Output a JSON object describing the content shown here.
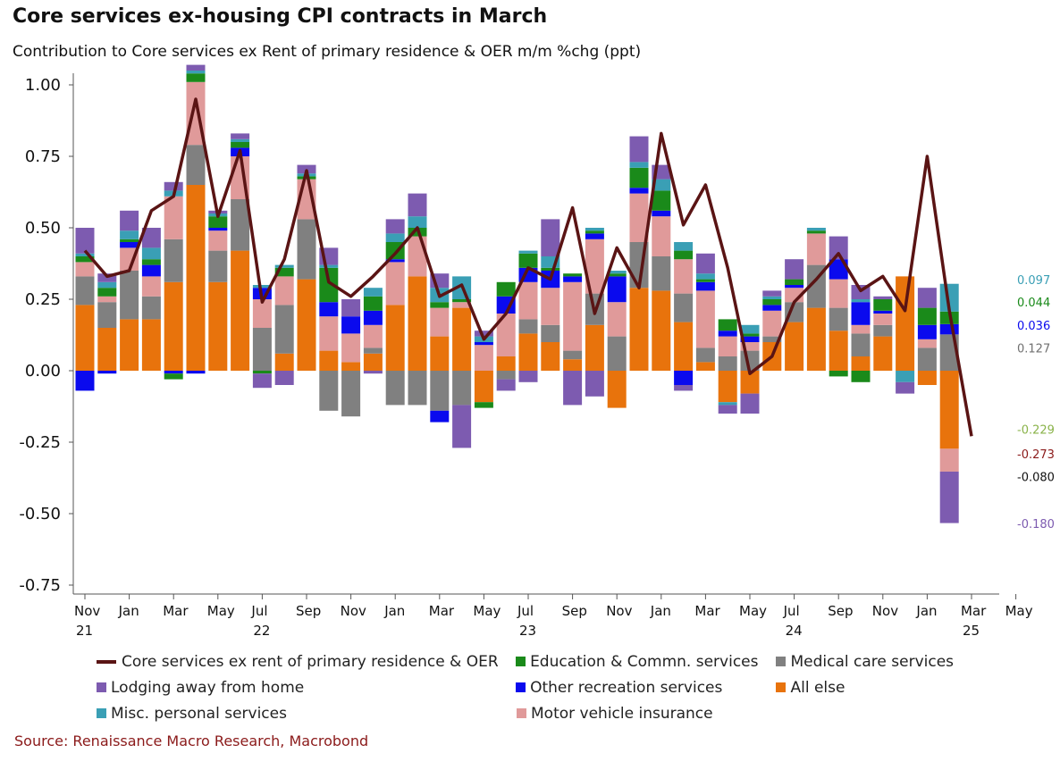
{
  "header": {
    "title": "Core services ex-housing CPI contracts in March",
    "subtitle": "Contribution to Core services ex Rent of primary residence & OER m/m %chg (ppt)"
  },
  "source": "Source: Renaissance Macro Research, Macrobond",
  "chart_data": {
    "type": "bar",
    "stacked": true,
    "ylim": [
      -0.75,
      1.0
    ],
    "yticks": [
      "1.00",
      "0.75",
      "0.50",
      "0.25",
      "0.00",
      "-0.25",
      "-0.50",
      "-0.75"
    ],
    "ytick_values": [
      1.0,
      0.75,
      0.5,
      0.25,
      0.0,
      -0.25,
      -0.5,
      -0.75
    ],
    "grid": false,
    "legend_position": "bottom",
    "x_ticks": [
      {
        "month": "Nov",
        "year": "21"
      },
      {
        "month": "Jan",
        "year": ""
      },
      {
        "month": "Mar",
        "year": ""
      },
      {
        "month": "May",
        "year": ""
      },
      {
        "month": "Jul",
        "year": "22"
      },
      {
        "month": "Sep",
        "year": ""
      },
      {
        "month": "Nov",
        "year": ""
      },
      {
        "month": "Jan",
        "year": ""
      },
      {
        "month": "Mar",
        "year": ""
      },
      {
        "month": "May",
        "year": ""
      },
      {
        "month": "Jul",
        "year": "23"
      },
      {
        "month": "Sep",
        "year": ""
      },
      {
        "month": "Nov",
        "year": ""
      },
      {
        "month": "Jan",
        "year": ""
      },
      {
        "month": "Mar",
        "year": ""
      },
      {
        "month": "May",
        "year": ""
      },
      {
        "month": "Jul",
        "year": "24"
      },
      {
        "month": "Sep",
        "year": ""
      },
      {
        "month": "Nov",
        "year": ""
      },
      {
        "month": "Jan",
        "year": ""
      },
      {
        "month": "Mar",
        "year": "25"
      },
      {
        "month": "May",
        "year": ""
      }
    ],
    "categories": [
      "2021-11",
      "2021-12",
      "2022-01",
      "2022-02",
      "2022-03",
      "2022-04",
      "2022-05",
      "2022-06",
      "2022-07",
      "2022-08",
      "2022-09",
      "2022-10",
      "2022-11",
      "2022-12",
      "2023-01",
      "2023-02",
      "2023-03",
      "2023-04",
      "2023-05",
      "2023-06",
      "2023-07",
      "2023-08",
      "2023-09",
      "2023-10",
      "2023-11",
      "2023-12",
      "2024-01",
      "2024-02",
      "2024-03",
      "2024-04",
      "2024-05",
      "2024-06",
      "2024-07",
      "2024-08",
      "2024-09",
      "2024-10",
      "2024-11",
      "2024-12",
      "2025-01",
      "2025-02",
      "2025-03"
    ],
    "series": [
      {
        "name": "All else",
        "color": "#e8730c",
        "values": [
          0.23,
          0.15,
          0.18,
          0.18,
          0.31,
          0.65,
          0.31,
          0.42,
          0.0,
          0.06,
          0.32,
          0.07,
          0.03,
          0.06,
          0.23,
          0.33,
          0.12,
          0.22,
          -0.11,
          0.05,
          0.13,
          0.1,
          0.04,
          0.16,
          -0.13,
          0.29,
          0.28,
          0.17,
          0.03,
          -0.11,
          -0.08,
          0.1,
          0.17,
          0.22,
          0.14,
          0.05,
          0.12,
          0.33,
          -0.05,
          -0.273,
          0.0
        ]
      },
      {
        "name": "Medical care services",
        "color": "#808080",
        "values": [
          0.1,
          0.09,
          0.17,
          0.08,
          0.15,
          0.14,
          0.11,
          0.18,
          0.15,
          0.17,
          0.21,
          -0.14,
          -0.16,
          0.02,
          -0.12,
          -0.12,
          -0.14,
          -0.12,
          0.0,
          -0.03,
          0.05,
          0.06,
          0.03,
          0.11,
          0.12,
          0.16,
          0.12,
          0.1,
          0.05,
          0.05,
          0.07,
          0.02,
          0.07,
          0.15,
          0.08,
          0.08,
          0.04,
          0.0,
          0.08,
          0.127,
          0.0
        ]
      },
      {
        "name": "Motor vehicle insurance",
        "color": "#e09a9a",
        "values": [
          0.05,
          0.02,
          0.08,
          0.07,
          0.15,
          0.22,
          0.07,
          0.15,
          0.1,
          0.1,
          0.14,
          0.12,
          0.1,
          0.08,
          0.15,
          0.14,
          0.1,
          0.02,
          0.09,
          0.15,
          0.13,
          0.13,
          0.24,
          0.19,
          0.12,
          0.17,
          0.14,
          0.12,
          0.2,
          0.07,
          0.03,
          0.09,
          0.05,
          0.11,
          0.1,
          0.03,
          0.04,
          0.0,
          0.03,
          -0.08,
          0.0
        ]
      },
      {
        "name": "Other recreation services",
        "color": "#0a0aee",
        "values": [
          -0.07,
          -0.01,
          0.02,
          0.04,
          -0.01,
          -0.01,
          0.01,
          0.03,
          0.04,
          0.0,
          0.0,
          0.05,
          0.06,
          0.05,
          0.01,
          0.0,
          -0.04,
          0.0,
          0.01,
          0.06,
          0.05,
          0.06,
          0.02,
          0.02,
          0.09,
          0.02,
          0.02,
          -0.05,
          0.03,
          0.02,
          0.02,
          0.02,
          0.01,
          0.0,
          0.07,
          0.08,
          0.01,
          0.0,
          0.05,
          0.036,
          0.0
        ]
      },
      {
        "name": "Education & Commn. services",
        "color": "#1a8a1a",
        "values": [
          0.02,
          0.03,
          0.01,
          0.02,
          -0.02,
          0.03,
          0.04,
          0.02,
          -0.01,
          0.03,
          0.01,
          0.12,
          0.0,
          0.05,
          0.06,
          0.03,
          0.02,
          0.01,
          -0.02,
          0.05,
          0.05,
          0.01,
          0.01,
          0.01,
          0.01,
          0.07,
          0.07,
          0.03,
          0.01,
          0.04,
          0.01,
          0.02,
          0.02,
          0.01,
          -0.02,
          -0.04,
          0.04,
          0.0,
          0.06,
          0.044,
          0.0
        ]
      },
      {
        "name": "Misc. personal services",
        "color": "#3a9fb5",
        "values": [
          0.01,
          0.02,
          0.03,
          0.04,
          0.02,
          0.01,
          0.01,
          0.01,
          0.01,
          0.01,
          0.01,
          0.01,
          0.0,
          0.03,
          0.03,
          0.04,
          0.05,
          0.08,
          0.02,
          0.0,
          0.01,
          0.04,
          0.0,
          0.01,
          0.01,
          0.02,
          0.04,
          0.03,
          0.02,
          -0.01,
          0.03,
          0.01,
          0.0,
          0.01,
          0.0,
          0.01,
          0.0,
          -0.04,
          0.0,
          0.097,
          0.0
        ]
      },
      {
        "name": "Lodging away from home",
        "color": "#7d5bb0",
        "values": [
          0.09,
          0.03,
          0.07,
          0.07,
          0.03,
          0.02,
          0.01,
          0.02,
          -0.05,
          -0.05,
          0.03,
          0.06,
          0.06,
          -0.01,
          0.05,
          0.08,
          0.05,
          -0.15,
          0.02,
          -0.04,
          -0.04,
          0.13,
          -0.12,
          -0.09,
          0.0,
          0.09,
          0.05,
          -0.02,
          0.07,
          -0.03,
          -0.07,
          0.02,
          0.07,
          0.0,
          0.08,
          0.05,
          0.01,
          -0.04,
          0.07,
          -0.18,
          0.0
        ]
      }
    ],
    "line": {
      "name": "Core services ex rent of primary residence & OER",
      "color": "#5a1414",
      "values": [
        0.42,
        0.33,
        0.35,
        0.56,
        0.61,
        0.95,
        0.54,
        0.77,
        0.24,
        0.39,
        0.7,
        0.31,
        0.26,
        0.33,
        0.41,
        0.5,
        0.26,
        0.3,
        0.11,
        0.2,
        0.36,
        0.32,
        0.57,
        0.2,
        0.43,
        0.29,
        0.83,
        0.51,
        0.65,
        0.36,
        -0.01,
        0.05,
        0.24,
        0.32,
        0.41,
        0.28,
        0.33,
        0.21,
        0.75,
        0.21,
        -0.229
      ]
    },
    "annotations": [
      {
        "text": "0.097",
        "value": 0.097,
        "color": "#3a9fb5",
        "y": 0.319
      },
      {
        "text": "0.044",
        "value": 0.044,
        "color": "#1a8a1a",
        "y": 0.24
      },
      {
        "text": "0.036",
        "value": 0.036,
        "color": "#0a0aee",
        "y": 0.16
      },
      {
        "text": "0.127",
        "value": 0.127,
        "color": "#707070",
        "y": 0.08
      },
      {
        "text": "-0.229",
        "value": -0.229,
        "color": "#8ab34a",
        "y": -0.205
      },
      {
        "text": "-0.273",
        "value": -0.273,
        "color": "#8b1a1a",
        "y": -0.29
      },
      {
        "text": "-0.080",
        "value": -0.08,
        "color": "#111111",
        "y": -0.37
      },
      {
        "text": "-0.180",
        "value": -0.18,
        "color": "#7d5bb0",
        "y": -0.535
      }
    ]
  },
  "legend": {
    "rows": [
      [
        {
          "label": "Core services ex rent of primary residence & OER",
          "color": "#5a1414",
          "kind": "line"
        },
        {
          "label": "Education & Commn. services",
          "color": "#1a8a1a",
          "kind": "box"
        },
        {
          "label": "Medical care services",
          "color": "#808080",
          "kind": "box"
        }
      ],
      [
        {
          "label": "Lodging away from home",
          "color": "#7d5bb0",
          "kind": "box"
        },
        {
          "label": "Other recreation services",
          "color": "#0a0aee",
          "kind": "box"
        },
        {
          "label": "All else",
          "color": "#e8730c",
          "kind": "box"
        }
      ],
      [
        {
          "label": "Misc. personal services",
          "color": "#3a9fb5",
          "kind": "box"
        },
        {
          "label": "Motor vehicle insurance",
          "color": "#e09a9a",
          "kind": "box"
        }
      ]
    ]
  }
}
